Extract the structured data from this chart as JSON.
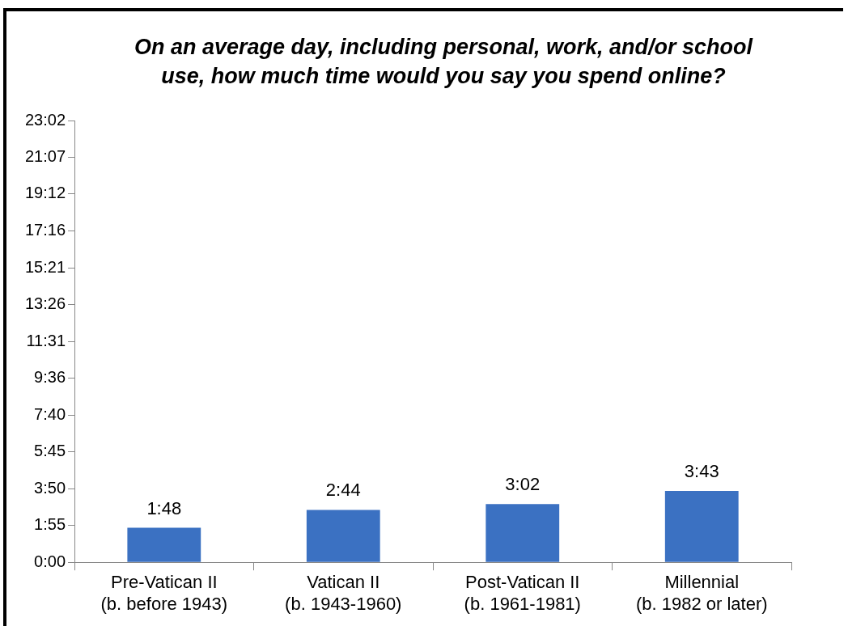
{
  "chart_data": {
    "type": "bar",
    "title": "On an average day, including personal, work, and/or school use, how much time would you say you spend online?",
    "categories": [
      "Pre-Vatican II\n(b. before 1943)",
      "Vatican II\n(b. 1943-1960)",
      "Post-Vatican II\n(b. 1961-1981)",
      "Millennial\n(b. 1982 or later)"
    ],
    "values": [
      108,
      164,
      182,
      223
    ],
    "value_labels": [
      "1:48",
      "2:44",
      "3:02",
      "3:43"
    ],
    "color": "#3b71c2",
    "ylim": [
      0,
      1382
    ],
    "yticks": [
      {
        "value": 0,
        "label": "0:00"
      },
      {
        "value": 115,
        "label": "1:55"
      },
      {
        "value": 230,
        "label": "3:50"
      },
      {
        "value": 345,
        "label": "5:45"
      },
      {
        "value": 460,
        "label": "7:40"
      },
      {
        "value": 576,
        "label": "9:36"
      },
      {
        "value": 691,
        "label": "11:31"
      },
      {
        "value": 806,
        "label": "13:26"
      },
      {
        "value": 921,
        "label": "15:21"
      },
      {
        "value": 1036,
        "label": "17:16"
      },
      {
        "value": 1152,
        "label": "19:12"
      },
      {
        "value": 1267,
        "label": "21:07"
      },
      {
        "value": 1382,
        "label": "23:02"
      }
    ],
    "grid": false,
    "legend": false
  }
}
